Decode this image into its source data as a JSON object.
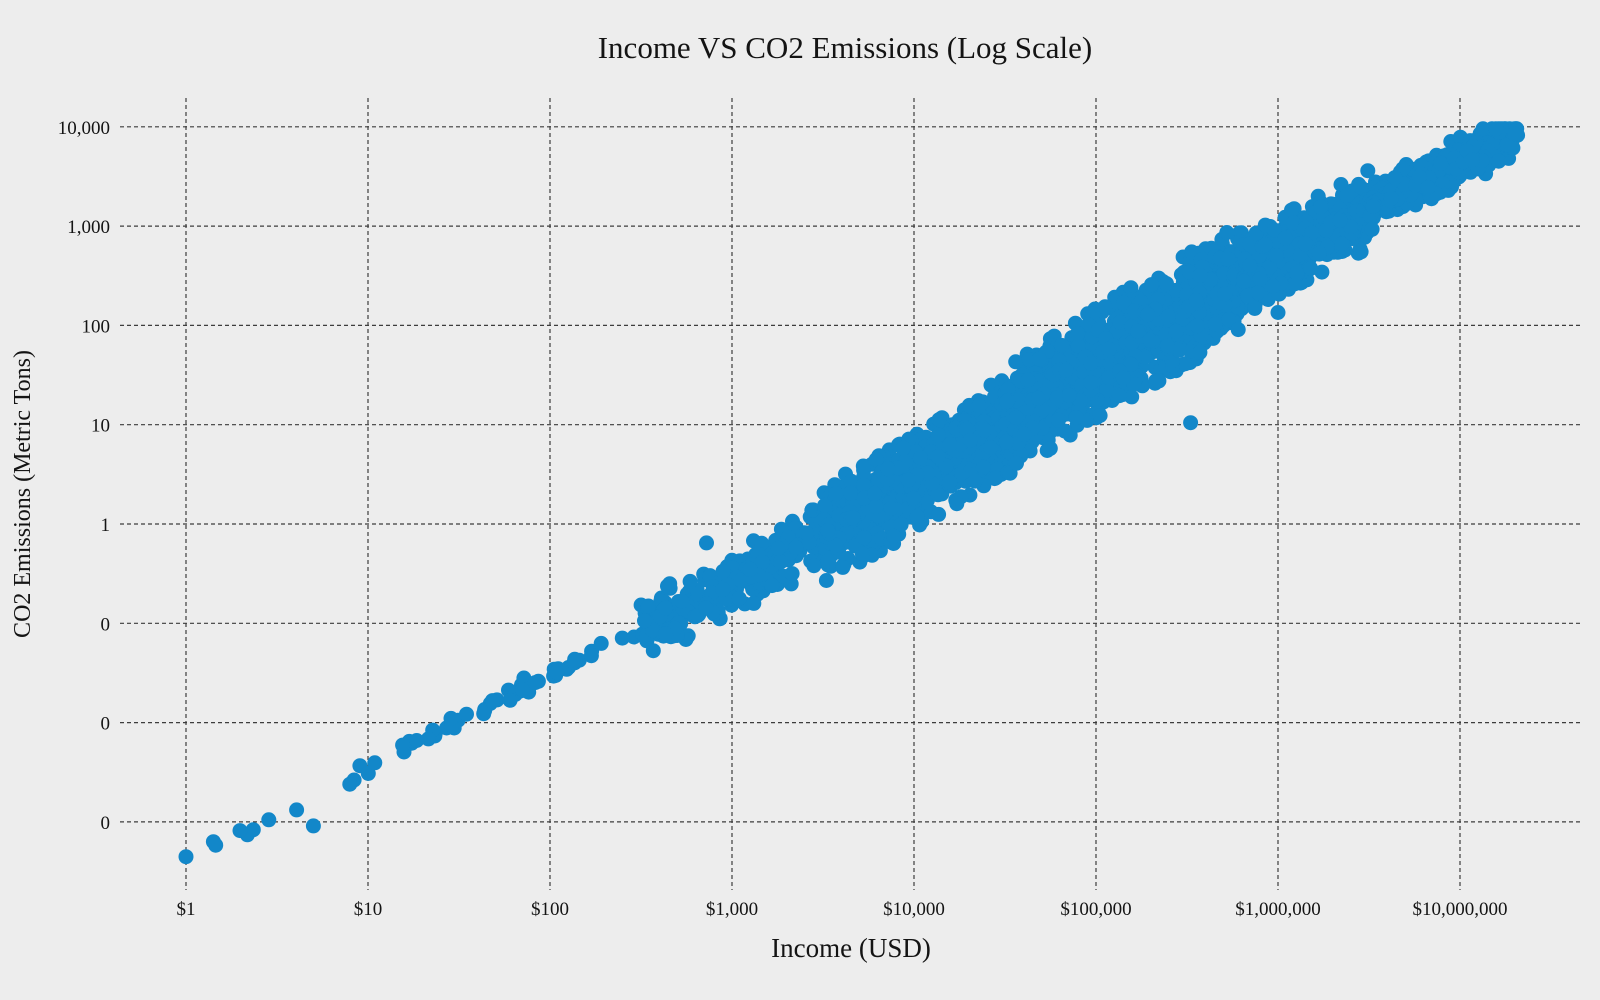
{
  "chart_data": {
    "type": "scatter",
    "title": "Income VS CO2 Emissions (Log Scale)",
    "xlabel": "Income (USD)",
    "ylabel": "CO2 Emissions (Metric Tons)",
    "x_scale": "log",
    "y_scale": "log",
    "x_ticks": [
      {
        "value": 1,
        "label": "$1"
      },
      {
        "value": 10,
        "label": "$10"
      },
      {
        "value": 100,
        "label": "$100"
      },
      {
        "value": 1000,
        "label": "$1,000"
      },
      {
        "value": 10000,
        "label": "$10,000"
      },
      {
        "value": 100000,
        "label": "$100,000"
      },
      {
        "value": 1000000,
        "label": "$1,000,000"
      },
      {
        "value": 10000000,
        "label": "$10,000,000"
      }
    ],
    "y_ticks": [
      {
        "value": 10000,
        "label": "10,000"
      },
      {
        "value": 1000,
        "label": "1,000"
      },
      {
        "value": 100,
        "label": "100"
      },
      {
        "value": 10,
        "label": "10"
      },
      {
        "value": 1,
        "label": "1"
      },
      {
        "value": 0.1,
        "label": "0"
      },
      {
        "value": 0.01,
        "label": "0"
      },
      {
        "value": 0.001,
        "label": "0"
      }
    ],
    "x_data_range": [
      1,
      20000000
    ],
    "y_data_range": [
      0.00045,
      9500
    ],
    "legend": "none",
    "grid": {
      "shown": true,
      "style": "dashed",
      "color": "#3d3d3d"
    },
    "background_color": "#ededed",
    "marker": {
      "shape": "circle",
      "color": "#1287c9",
      "radius_px": 7.5
    },
    "trend_description": "Tight positive log-log band: CO2 rises ~1 decade per income decade, from ($1, ~0.0005 t) to (~$20M, ~9,000 t); band is sparse single dots below $300, densest between $10,000 and $1,000,000, narrower above $2M; scattered low outliers near $1,000 and a small cluster touching 1,000 t just left of $1,000,000.",
    "generation": {
      "seed": 1234567,
      "trend_anchors": [
        [
          0,
          -3.35
        ],
        [
          3,
          -0.61
        ],
        [
          4,
          0.4
        ],
        [
          5,
          1.62
        ],
        [
          6,
          2.7
        ],
        [
          7.32,
          3.95
        ]
      ],
      "segments": [
        {
          "u0": 0.0,
          "u1": 1.0,
          "n": 9,
          "sigma": 0.05
        },
        {
          "u0": 1.0,
          "u1": 2.5,
          "n": 52,
          "sigma": 0.045
        },
        {
          "u0": 2.5,
          "u1": 3.5,
          "n": 260,
          "sigma": 0.14
        },
        {
          "u0": 3.5,
          "u1": 4.5,
          "n": 900,
          "sigma": 0.21
        },
        {
          "u0": 4.5,
          "u1": 5.8,
          "n": 1400,
          "sigma": 0.24
        },
        {
          "u0": 5.8,
          "u1": 6.5,
          "n": 430,
          "sigma": 0.17
        },
        {
          "u0": 6.5,
          "u1": 7.32,
          "n": 330,
          "sigma": 0.11
        }
      ],
      "outliers_log10": [
        [
          0.0,
          -3.35
        ],
        [
          0.7,
          -3.04
        ],
        [
          0.9,
          -2.62
        ],
        [
          2.86,
          -0.19
        ],
        [
          2.95,
          -0.66
        ],
        [
          3.04,
          -0.75
        ],
        [
          3.12,
          -0.8
        ],
        [
          3.22,
          -0.62
        ],
        [
          3.33,
          -0.5
        ],
        [
          3.45,
          -0.42
        ],
        [
          5.52,
          1.02
        ],
        [
          5.88,
          2.93
        ],
        [
          5.93,
          3.01
        ],
        [
          5.98,
          2.96
        ],
        [
          6.0,
          2.13
        ],
        [
          6.04,
          2.88
        ],
        [
          7.26,
          3.82
        ],
        [
          7.3,
          3.93
        ]
      ]
    }
  }
}
